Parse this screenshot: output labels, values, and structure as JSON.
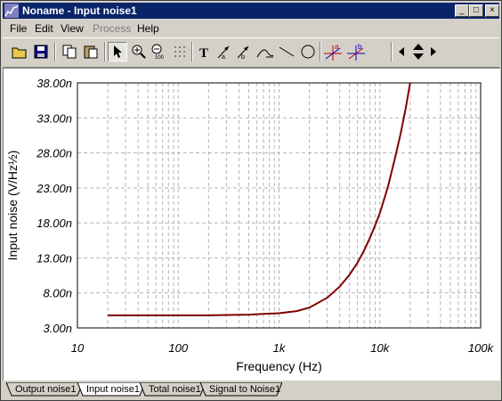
{
  "window": {
    "title": "Noname - Input noise1",
    "controls": {
      "minimize": "_",
      "maximize": "□",
      "close": "×"
    }
  },
  "menu": {
    "items": [
      "File",
      "Edit",
      "View",
      "Process",
      "Help"
    ]
  },
  "toolbar": {
    "tools": [
      "open-folder-icon",
      "save-icon",
      "copy-icon",
      "paste-icon",
      "pointer-icon",
      "zoom-in-icon",
      "zoom-100-icon",
      "grid-icon",
      "text-icon",
      "arrow-text-icon",
      "arrow-text-2-icon",
      "curve-label-icon",
      "line-icon",
      "circle-icon",
      "cursor-a-icon",
      "cursor-b-icon",
      "scroll-left-icon",
      "scroll-updown-icon",
      "scroll-right-icon"
    ]
  },
  "tabs": [
    "Output noise1",
    "Input noise1",
    "Total noise1",
    "Signal to Noise1"
  ],
  "active_tab": 1,
  "chart_data": {
    "type": "line",
    "xlabel": "Frequency (Hz)",
    "ylabel": "Input noise (V/Hz½)",
    "xscale": "log",
    "xlim": [
      10,
      100000
    ],
    "ylim": [
      3e-09,
      3.8e-08
    ],
    "xticks": [
      "10",
      "100",
      "1k",
      "10k",
      "100k"
    ],
    "yticks": [
      "3.00n",
      "8.00n",
      "13.00n",
      "18.00n",
      "23.00n",
      "28.00n",
      "33.00n",
      "38.00n"
    ],
    "grid": true,
    "line_color": "#800000",
    "series": [
      {
        "x": [
          20,
          50,
          100,
          200,
          300,
          500,
          700,
          1000,
          1500,
          2000,
          3000,
          4000,
          5000,
          6000,
          7000,
          8000,
          9000,
          10000,
          12000,
          14000,
          16000,
          18000,
          20000
        ],
        "values": [
          4.8e-09,
          4.8e-09,
          4.8e-09,
          4.8e-09,
          4.85e-09,
          4.9e-09,
          5e-09,
          5.1e-09,
          5.4e-09,
          5.9e-09,
          7.3e-09,
          8.9e-09,
          1.06e-08,
          1.23e-08,
          1.41e-08,
          1.59e-08,
          1.77e-08,
          1.94e-08,
          2.31e-08,
          2.7e-08,
          3.06e-08,
          3.43e-08,
          3.8e-08
        ]
      }
    ]
  }
}
